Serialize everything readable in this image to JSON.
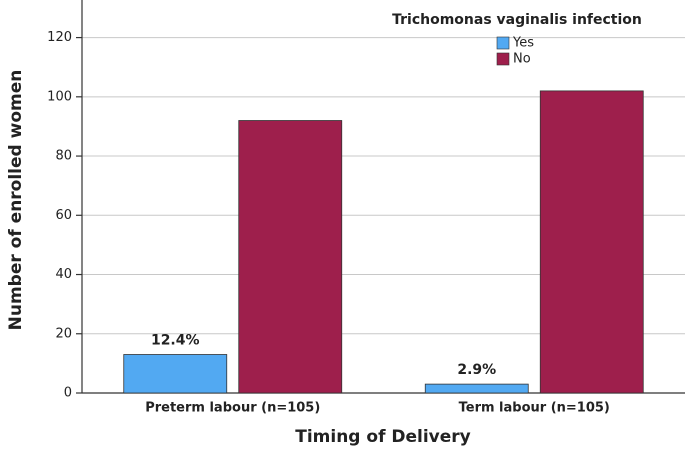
{
  "chart_data": {
    "type": "bar",
    "x_label": "Timing of Delivery",
    "y_label": "Number of enrolled women",
    "legend_title": "Trichomonas vaginalis infection",
    "categories": [
      "Preterm labour (n=105)",
      "Term labour (n=105)"
    ],
    "series": [
      {
        "name": "Yes",
        "color": "#52a9f2",
        "values": [
          13,
          3
        ]
      },
      {
        "name": "No",
        "color": "#9e1f4c",
        "values": [
          92,
          102
        ]
      }
    ],
    "annotations": [
      "12.4%",
      "2.9%"
    ],
    "ylim": [
      0,
      131
    ],
    "yticks": [
      0,
      20,
      40,
      60,
      80,
      100,
      120
    ],
    "grid": true,
    "legend": "top-right"
  }
}
